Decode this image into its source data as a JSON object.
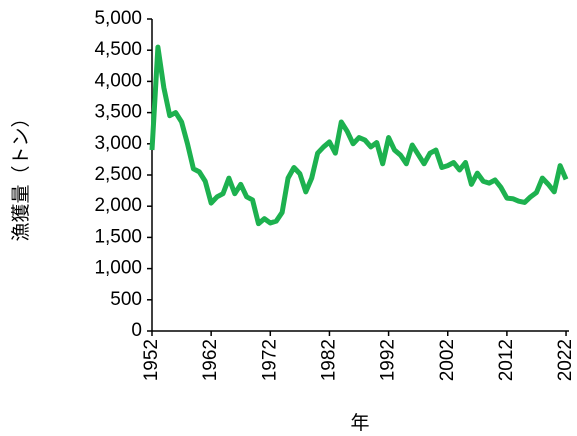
{
  "chart_data": {
    "type": "line",
    "x_label": "年",
    "y_label": "漁獲量（トン）",
    "x": [
      1952,
      1953,
      1954,
      1955,
      1956,
      1957,
      1958,
      1959,
      1960,
      1961,
      1962,
      1963,
      1964,
      1965,
      1966,
      1967,
      1968,
      1969,
      1970,
      1971,
      1972,
      1973,
      1974,
      1975,
      1976,
      1977,
      1978,
      1979,
      1980,
      1981,
      1982,
      1983,
      1984,
      1985,
      1986,
      1987,
      1988,
      1989,
      1990,
      1991,
      1992,
      1993,
      1994,
      1995,
      1996,
      1997,
      1998,
      1999,
      2000,
      2001,
      2002,
      2003,
      2004,
      2005,
      2006,
      2007,
      2008,
      2009,
      2010,
      2011,
      2012,
      2013,
      2014,
      2015,
      2016,
      2017,
      2018,
      2019,
      2020,
      2021,
      2022
    ],
    "series": [
      {
        "color": "#1db14f",
        "values": [
          2900,
          4550,
          3900,
          3450,
          3500,
          3350,
          3000,
          2600,
          2550,
          2400,
          2050,
          2150,
          2200,
          2450,
          2200,
          2350,
          2150,
          2100,
          1720,
          1800,
          1730,
          1760,
          1900,
          2450,
          2620,
          2520,
          2230,
          2450,
          2850,
          2950,
          3030,
          2850,
          3350,
          3200,
          3000,
          3100,
          3060,
          2950,
          3020,
          2680,
          3100,
          2900,
          2820,
          2680,
          2980,
          2830,
          2680,
          2850,
          2900,
          2620,
          2650,
          2700,
          2580,
          2700,
          2350,
          2530,
          2400,
          2370,
          2420,
          2300,
          2130,
          2120,
          2080,
          2060,
          2150,
          2220,
          2450,
          2350,
          2230,
          2650,
          2430
        ]
      }
    ],
    "xlim": [
      1952,
      2022.5
    ],
    "xticks": [
      1952,
      1962,
      1972,
      1982,
      1992,
      2002,
      2012,
      2022
    ],
    "ylim": [
      0,
      5000
    ],
    "yticks": [
      0,
      500,
      {
        "value": 1000,
        "label": "1,000"
      },
      {
        "value": 1500,
        "label": "1,500"
      },
      {
        "value": 2000,
        "label": "2,000"
      },
      {
        "value": 2500,
        "label": "2,500"
      },
      {
        "value": 3000,
        "label": "3,000"
      },
      {
        "value": 3500,
        "label": "3,500"
      },
      {
        "value": 4000,
        "label": "4,000"
      },
      {
        "value": 4500,
        "label": "4,500"
      },
      {
        "value": 5000,
        "label": "5,000"
      }
    ]
  }
}
